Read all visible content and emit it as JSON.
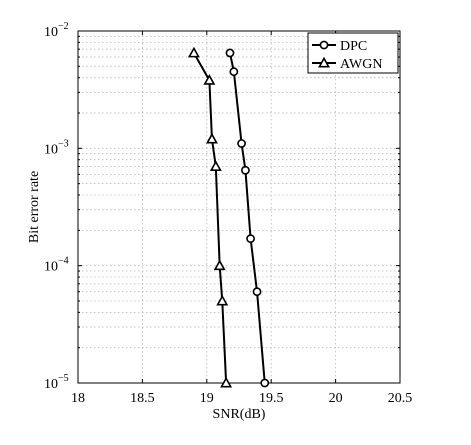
{
  "chart_data": {
    "type": "line",
    "title": "",
    "xlabel": "SNR(dB)",
    "ylabel": "Bit error rate",
    "xlim": [
      18,
      20.5
    ],
    "ylim": [
      1e-05,
      0.01
    ],
    "yscale": "log",
    "grid": true,
    "legend_position": "top-right",
    "x_ticks": [
      18,
      18.5,
      19,
      19.5,
      20,
      20.5
    ],
    "x_tick_labels": [
      "18",
      "18.5",
      "19",
      "19.5",
      "20",
      "20.5"
    ],
    "y_ticks": [
      1e-05,
      0.0001,
      0.001,
      0.01
    ],
    "y_tick_labels": [
      {
        "base": "10",
        "exp": "−5"
      },
      {
        "base": "10",
        "exp": "−4"
      },
      {
        "base": "10",
        "exp": "−3"
      },
      {
        "base": "10",
        "exp": "−2"
      }
    ],
    "series": [
      {
        "name": "DPC",
        "marker": "circle",
        "color": "#000000",
        "x": [
          19.18,
          19.21,
          19.27,
          19.3,
          19.34,
          19.39,
          19.45
        ],
        "y": [
          0.0065,
          0.0045,
          0.0011,
          0.00065,
          0.00017,
          6e-05,
          1e-05
        ]
      },
      {
        "name": "AWGN",
        "marker": "triangle",
        "color": "#000000",
        "x": [
          18.9,
          19.02,
          19.04,
          19.07,
          19.1,
          19.12,
          19.15
        ],
        "y": [
          0.0065,
          0.0038,
          0.0012,
          0.0007,
          0.0001,
          5e-05,
          1e-05
        ]
      }
    ]
  }
}
